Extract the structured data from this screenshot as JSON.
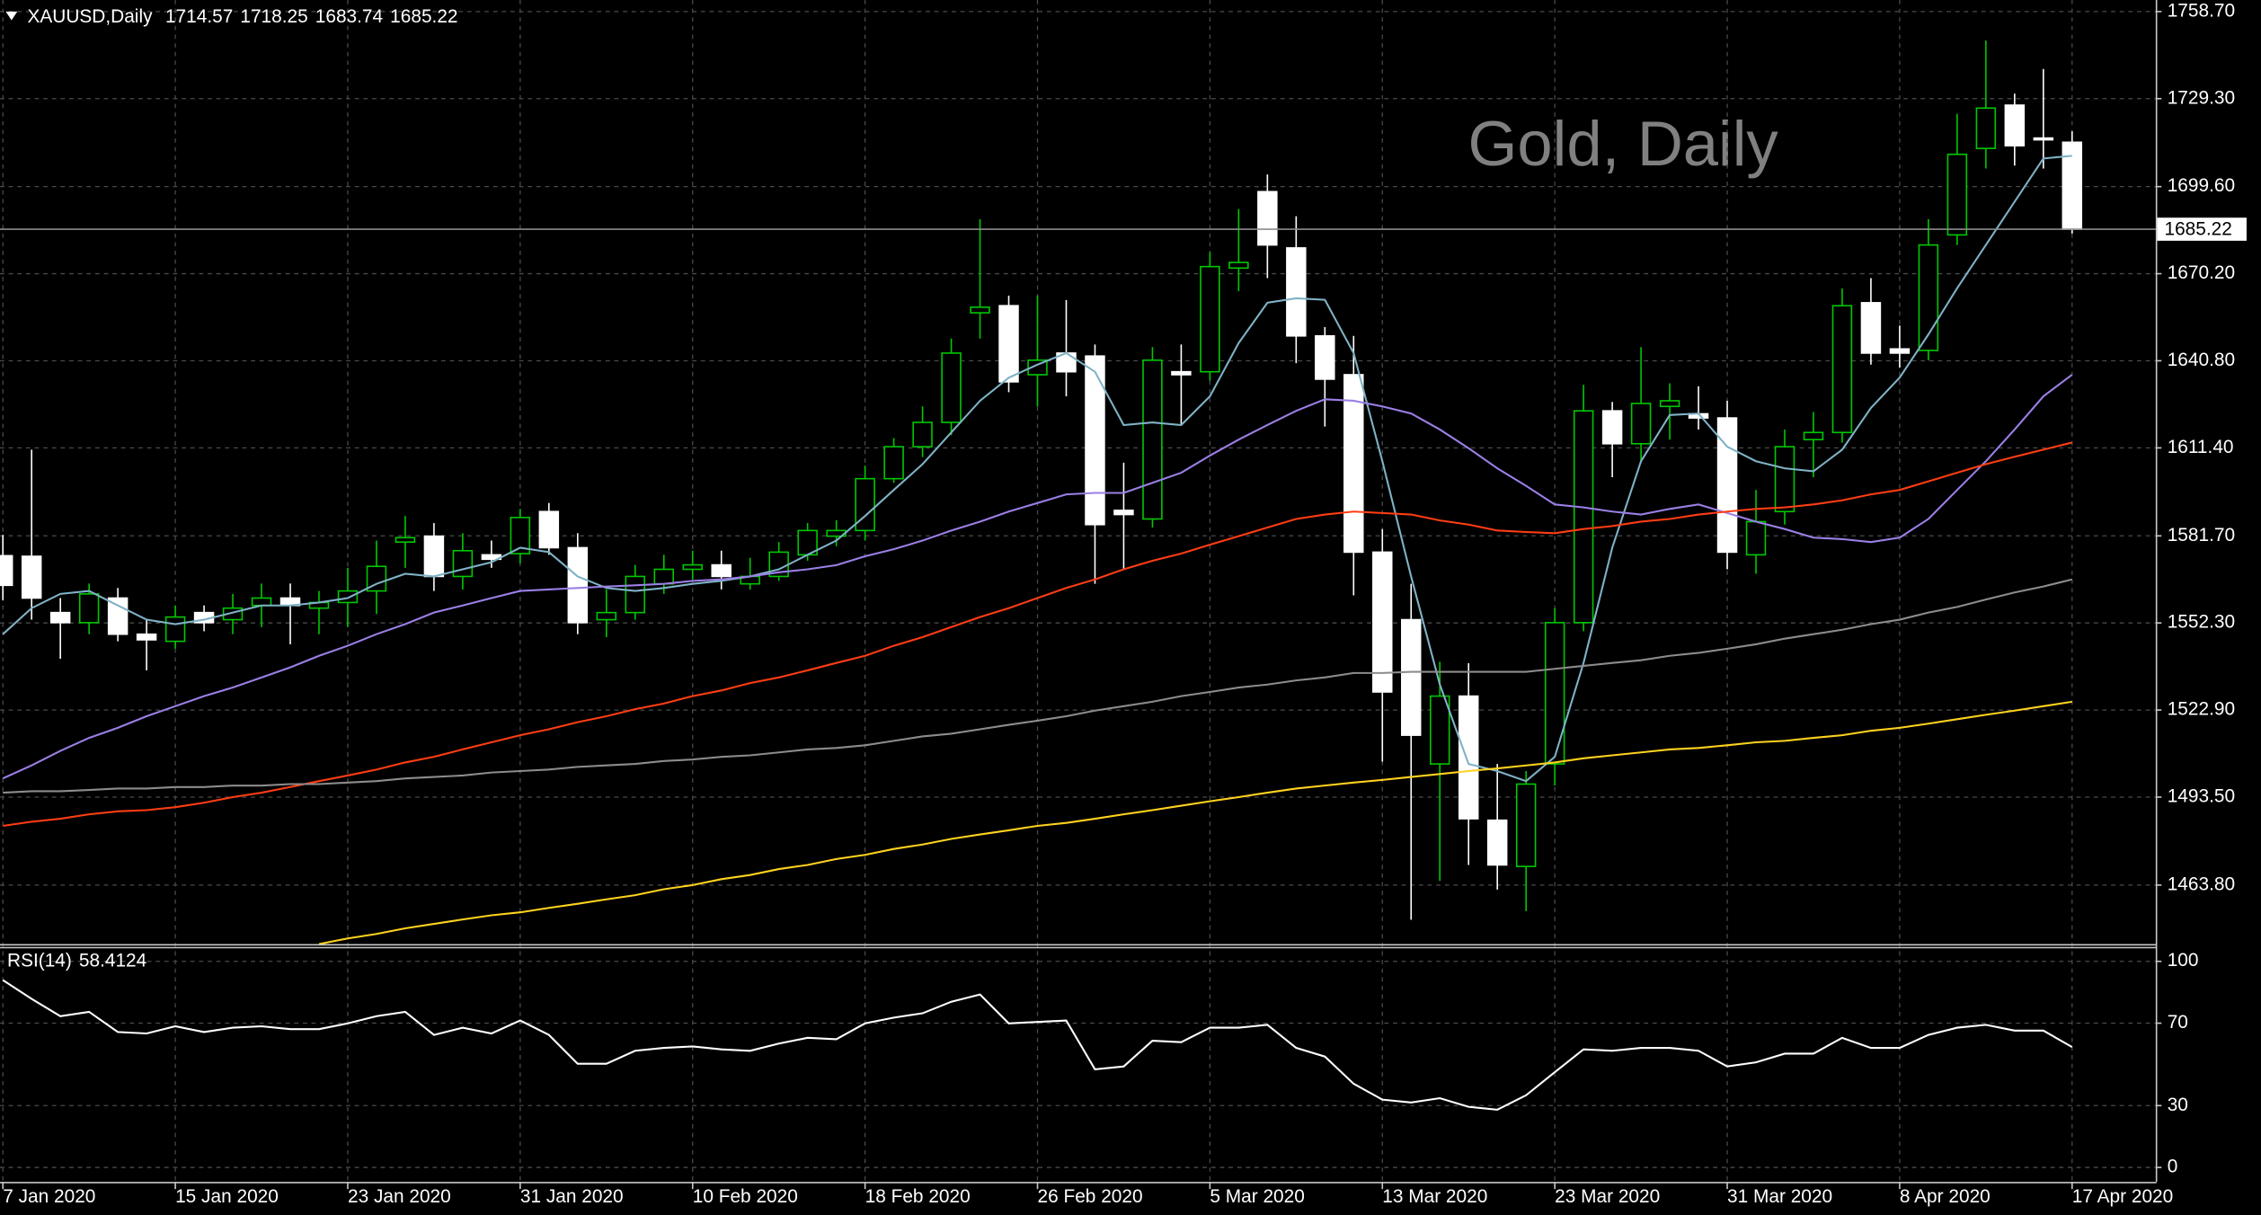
{
  "chart_data": [
    {
      "type": "candlestick",
      "symbol": "XAUUSD,Daily",
      "watermark": "Gold, Daily",
      "categories": [
        "7 Jan 2020",
        null,
        null,
        null,
        null,
        null,
        "15 Jan 2020",
        null,
        null,
        null,
        null,
        null,
        "23 Jan 2020",
        null,
        null,
        null,
        null,
        null,
        "31 Jan 2020",
        null,
        null,
        null,
        null,
        null,
        "10 Feb 2020",
        null,
        null,
        null,
        null,
        null,
        "18 Feb 2020",
        null,
        null,
        null,
        null,
        null,
        "26 Feb 2020",
        null,
        null,
        null,
        null,
        null,
        "5 Mar 2020",
        null,
        null,
        null,
        null,
        null,
        "13 Mar 2020",
        null,
        null,
        null,
        null,
        null,
        "23 Mar 2020",
        null,
        null,
        null,
        null,
        null,
        "31 Mar 2020",
        null,
        null,
        null,
        null,
        null,
        "8 Apr 2020",
        null,
        null,
        null,
        null,
        null,
        "17 Apr 2020"
      ],
      "open": [
        1575.0,
        1574.8,
        1555.8,
        1552.4,
        1560.7,
        1548.5,
        1546.1,
        1555.8,
        1553.4,
        1558.2,
        1560.7,
        1557.3,
        1559.2,
        1563.1,
        1579.6,
        1581.6,
        1568.0,
        1575.3,
        1575.7,
        1589.9,
        1577.7,
        1553.4,
        1555.8,
        1565.5,
        1570.4,
        1571.9,
        1565.5,
        1568.0,
        1575.3,
        1581.6,
        1583.5,
        1601.0,
        1611.8,
        1620.0,
        1657.0,
        1659.4,
        1636.1,
        1643.4,
        1642.4,
        1590.3,
        1587.4,
        1637.1,
        1637.1,
        1672.1,
        1697.9,
        1678.9,
        1649.2,
        1636.1,
        1576.2,
        1553.4,
        1504.7,
        1527.6,
        1485.7,
        1470.1,
        1504.7,
        1552.4,
        1623.9,
        1612.8,
        1625.4,
        1622.9,
        1621.5,
        1575.3,
        1589.9,
        1614.2,
        1616.6,
        1660.4,
        1644.8,
        1644.3,
        1683.3,
        1712.5,
        1727.1,
        1716.0,
        1714.57
      ],
      "high": [
        1582.0,
        1610.8,
        1560.7,
        1565.6,
        1564.1,
        1553.4,
        1558.2,
        1558.2,
        1562.1,
        1565.6,
        1565.6,
        1563.1,
        1570.9,
        1580.1,
        1588.4,
        1586.0,
        1582.6,
        1580.1,
        1590.8,
        1592.8,
        1582.6,
        1563.6,
        1571.9,
        1575.3,
        1576.7,
        1576.7,
        1574.3,
        1579.6,
        1586.0,
        1587.0,
        1605.4,
        1614.7,
        1625.4,
        1648.3,
        1688.6,
        1662.8,
        1662.8,
        1661.3,
        1646.3,
        1606.4,
        1645.4,
        1646.3,
        1677.5,
        1692.0,
        1703.7,
        1689.6,
        1652.2,
        1649.2,
        1584.0,
        1565.5,
        1539.2,
        1538.7,
        1504.7,
        1502.3,
        1557.3,
        1632.7,
        1626.9,
        1645.4,
        1633.2,
        1632.2,
        1627.3,
        1597.2,
        1617.6,
        1623.5,
        1665.2,
        1668.7,
        1652.7,
        1688.6,
        1724.2,
        1748.9,
        1731.0,
        1739.3,
        1718.25
      ],
      "low": [
        1560.0,
        1553.4,
        1540.2,
        1548.5,
        1546.1,
        1536.3,
        1543.6,
        1549.5,
        1548.5,
        1550.9,
        1545.1,
        1548.5,
        1550.9,
        1555.3,
        1570.9,
        1563.1,
        1563.6,
        1570.9,
        1572.4,
        1575.3,
        1548.5,
        1547.5,
        1553.4,
        1562.1,
        1567.0,
        1563.6,
        1563.6,
        1566.5,
        1573.3,
        1578.2,
        1580.1,
        1599.6,
        1608.3,
        1615.7,
        1648.3,
        1630.2,
        1625.4,
        1628.8,
        1565.5,
        1570.4,
        1584.5,
        1619.0,
        1634.1,
        1664.3,
        1668.7,
        1640.0,
        1618.6,
        1561.6,
        1505.5,
        1452.1,
        1465.2,
        1470.6,
        1462.3,
        1455.0,
        1497.4,
        1549.5,
        1601.5,
        1606.4,
        1614.2,
        1617.6,
        1570.4,
        1568.9,
        1585.5,
        1601.5,
        1613.2,
        1639.5,
        1638.5,
        1641.0,
        1679.9,
        1705.7,
        1706.7,
        1705.7,
        1683.74
      ],
      "close": [
        1565.0,
        1560.7,
        1552.4,
        1562.1,
        1548.5,
        1546.6,
        1554.3,
        1552.4,
        1557.3,
        1560.7,
        1558.2,
        1559.2,
        1563.1,
        1571.4,
        1581.1,
        1568.0,
        1576.7,
        1573.8,
        1587.9,
        1577.7,
        1552.4,
        1555.8,
        1568.0,
        1570.4,
        1571.9,
        1568.0,
        1568.0,
        1576.2,
        1583.5,
        1583.5,
        1601.0,
        1611.8,
        1620.0,
        1643.4,
        1658.9,
        1633.7,
        1641.0,
        1637.1,
        1585.5,
        1588.9,
        1641.0,
        1636.1,
        1672.6,
        1674.0,
        1679.9,
        1649.2,
        1634.6,
        1576.2,
        1529.0,
        1514.4,
        1527.6,
        1486.2,
        1470.6,
        1497.9,
        1552.4,
        1623.9,
        1612.8,
        1626.4,
        1627.3,
        1621.5,
        1576.2,
        1586.5,
        1611.8,
        1616.6,
        1659.4,
        1643.4,
        1643.4,
        1679.9,
        1710.5,
        1726.1,
        1713.4,
        1715.4,
        1685.22
      ],
      "up_color": "#00c800",
      "up_fill": "#000000",
      "down_color": "#ffffff",
      "ylim": [
        1443.9,
        1762.6
      ],
      "yticks": [
        {
          "value": 1758.7,
          "label": "1758.70"
        },
        {
          "value": 1729.3,
          "label": "1729.30"
        },
        {
          "value": 1699.6,
          "label": "1699.60"
        },
        {
          "value": 1670.2,
          "label": "1670.20"
        },
        {
          "value": 1640.8,
          "label": "1640.80"
        },
        {
          "value": 1611.4,
          "label": "1611.40"
        },
        {
          "value": 1581.7,
          "label": "1581.70"
        },
        {
          "value": 1552.3,
          "label": "1552.30"
        },
        {
          "value": 1522.9,
          "label": "1522.90"
        },
        {
          "value": 1493.5,
          "label": "1493.50"
        },
        {
          "value": 1463.8,
          "label": "1463.80"
        }
      ],
      "grid": true,
      "series": [
        {
          "color": "#7fb2c6",
          "values": [
            1548.5,
            1557.3,
            1562.1,
            1563.1,
            1558.2,
            1553.4,
            1551.9,
            1553.4,
            1555.8,
            1558.2,
            1558.2,
            1559.2,
            1560.7,
            1565.5,
            1568.9,
            1568.0,
            1570.4,
            1572.8,
            1577.7,
            1576.2,
            1568.0,
            1564.1,
            1563.1,
            1564.1,
            1565.5,
            1566.5,
            1568.0,
            1570.4,
            1575.3,
            1580.1,
            1588.4,
            1597.2,
            1605.9,
            1616.6,
            1627.3,
            1635.1,
            1639.5,
            1643.4,
            1637.1,
            1619.1,
            1620.0,
            1619.1,
            1628.8,
            1646.8,
            1660.4,
            1661.9,
            1661.4,
            1643.4,
            1606.9,
            1568.0,
            1531.5,
            1504.7,
            1502.3,
            1498.9,
            1507.1,
            1538.8,
            1577.7,
            1606.9,
            1622.5,
            1623.0,
            1611.8,
            1606.9,
            1604.5,
            1603.5,
            1610.8,
            1624.9,
            1635.1,
            1649.7,
            1665.3,
            1679.9,
            1694.5,
            1709.1,
            1710.0
          ]
        },
        {
          "color": "#9b7fe6",
          "values": [
            1499.8,
            1504.2,
            1509.1,
            1513.5,
            1516.9,
            1520.8,
            1524.2,
            1527.6,
            1530.5,
            1533.9,
            1537.3,
            1541.2,
            1544.6,
            1548.5,
            1551.9,
            1555.8,
            1558.2,
            1560.7,
            1563.1,
            1563.6,
            1564.1,
            1564.6,
            1565.0,
            1565.5,
            1566.5,
            1567.0,
            1568.0,
            1569.4,
            1570.4,
            1571.8,
            1574.8,
            1577.2,
            1580.1,
            1583.5,
            1586.5,
            1589.9,
            1592.8,
            1595.7,
            1596.2,
            1596.2,
            1599.6,
            1603.0,
            1608.8,
            1614.2,
            1619.1,
            1623.9,
            1627.8,
            1627.3,
            1625.4,
            1623.0,
            1617.6,
            1611.3,
            1604.5,
            1598.6,
            1592.3,
            1591.3,
            1589.9,
            1588.9,
            1590.8,
            1592.3,
            1589.4,
            1586.5,
            1584.0,
            1581.1,
            1580.6,
            1579.6,
            1581.1,
            1587.4,
            1597.2,
            1606.9,
            1617.6,
            1628.8,
            1636.1
          ]
        },
        {
          "color": "#ff3d14",
          "values": [
            1483.8,
            1485.2,
            1486.2,
            1487.7,
            1488.7,
            1489.1,
            1490.1,
            1491.6,
            1493.5,
            1495.0,
            1496.9,
            1498.9,
            1500.8,
            1502.8,
            1505.2,
            1507.1,
            1509.6,
            1512.0,
            1514.4,
            1516.4,
            1518.8,
            1520.8,
            1523.2,
            1525.1,
            1527.6,
            1529.5,
            1532.0,
            1533.9,
            1536.3,
            1538.8,
            1541.2,
            1544.6,
            1547.5,
            1550.9,
            1554.3,
            1557.3,
            1560.7,
            1564.1,
            1567.0,
            1570.4,
            1573.3,
            1575.7,
            1578.7,
            1581.6,
            1584.5,
            1587.4,
            1588.9,
            1589.9,
            1589.4,
            1588.9,
            1586.9,
            1585.5,
            1583.5,
            1583.0,
            1582.6,
            1584.0,
            1585.0,
            1586.5,
            1587.4,
            1588.9,
            1589.9,
            1590.8,
            1591.3,
            1592.3,
            1593.7,
            1595.7,
            1597.2,
            1600.1,
            1603.0,
            1605.9,
            1608.4,
            1610.8,
            1613.2
          ]
        },
        {
          "color": "#8c8c8c",
          "values": [
            1495.0,
            1495.5,
            1495.5,
            1495.9,
            1496.4,
            1496.4,
            1496.9,
            1496.9,
            1497.4,
            1497.4,
            1497.9,
            1497.9,
            1498.4,
            1498.9,
            1499.8,
            1500.3,
            1500.8,
            1501.8,
            1502.3,
            1502.8,
            1503.7,
            1504.2,
            1504.7,
            1505.7,
            1506.2,
            1507.1,
            1507.6,
            1508.6,
            1509.6,
            1510.1,
            1511.0,
            1512.5,
            1514.0,
            1514.9,
            1516.4,
            1517.9,
            1519.3,
            1520.8,
            1522.7,
            1524.2,
            1525.7,
            1527.6,
            1529.0,
            1530.5,
            1531.5,
            1532.9,
            1533.9,
            1535.4,
            1535.4,
            1535.8,
            1535.8,
            1535.8,
            1535.8,
            1535.8,
            1536.8,
            1537.8,
            1538.8,
            1539.7,
            1541.2,
            1542.2,
            1543.6,
            1545.1,
            1547.0,
            1548.5,
            1550.0,
            1551.9,
            1553.4,
            1555.8,
            1557.7,
            1560.2,
            1562.6,
            1564.6,
            1567.0
          ]
        },
        {
          "color": "#ffd21e",
          "values": [
            null,
            null,
            null,
            null,
            null,
            null,
            null,
            null,
            null,
            null,
            null,
            1443.9,
            1445.8,
            1447.3,
            1449.2,
            1450.7,
            1452.2,
            1453.6,
            1454.6,
            1456.1,
            1457.5,
            1459.0,
            1460.4,
            1462.4,
            1463.8,
            1465.8,
            1467.2,
            1469.2,
            1470.6,
            1472.6,
            1474.0,
            1476.0,
            1477.5,
            1479.4,
            1480.9,
            1482.3,
            1483.8,
            1484.8,
            1486.2,
            1487.7,
            1489.1,
            1490.6,
            1492.1,
            1493.5,
            1495.0,
            1496.4,
            1497.4,
            1498.4,
            1499.3,
            1500.3,
            1501.3,
            1502.3,
            1503.2,
            1504.2,
            1505.2,
            1506.6,
            1507.6,
            1508.6,
            1509.6,
            1510.1,
            1511.0,
            1512.0,
            1512.5,
            1513.5,
            1514.4,
            1515.9,
            1516.9,
            1518.3,
            1519.8,
            1521.3,
            1522.7,
            1524.2,
            1525.7
          ]
        }
      ]
    },
    {
      "type": "line",
      "title": "RSI(14)",
      "ylim": [
        -7,
        107
      ],
      "yticks": [
        0,
        30,
        70,
        100
      ],
      "grid": true,
      "series": [
        {
          "color": "#ffffff",
          "values": [
            90.9,
            81.8,
            73.4,
            75.5,
            65.7,
            65.0,
            68.5,
            65.7,
            67.8,
            68.5,
            67.1,
            67.1,
            69.9,
            73.4,
            75.5,
            64.3,
            67.8,
            65.0,
            71.3,
            64.3,
            50.3,
            50.3,
            56.6,
            58.0,
            58.7,
            57.3,
            56.6,
            60.1,
            62.9,
            62.2,
            69.9,
            72.7,
            74.8,
            80.4,
            83.9,
            69.9,
            70.6,
            71.3,
            47.6,
            49.0,
            61.5,
            60.8,
            67.8,
            67.8,
            69.2,
            58.0,
            53.8,
            40.6,
            32.9,
            31.5,
            33.6,
            29.4,
            28.0,
            35.0,
            46.2,
            57.3,
            56.6,
            58.0,
            58.0,
            56.6,
            49.0,
            51.0,
            55.2,
            55.2,
            62.9,
            58.0,
            58.0,
            64.3,
            67.8,
            69.2,
            66.4,
            66.4,
            58.4124
          ]
        }
      ]
    }
  ]
}
